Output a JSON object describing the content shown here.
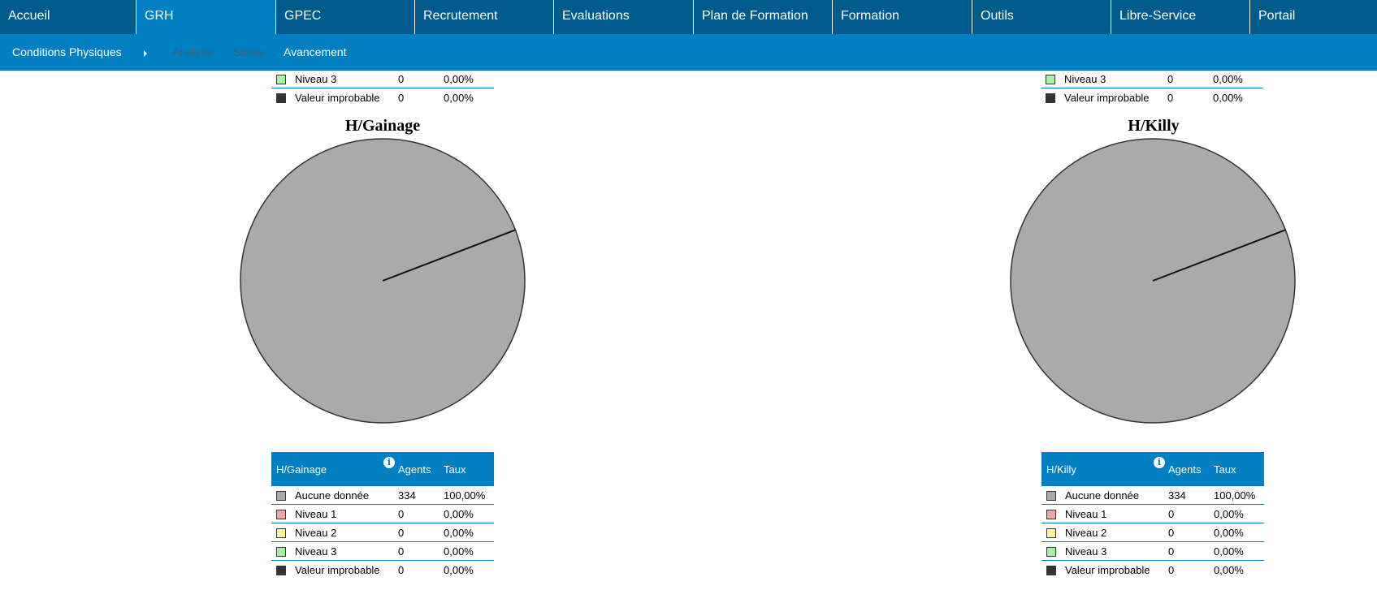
{
  "topnav": {
    "items": [
      {
        "label": "Accueil",
        "active": false
      },
      {
        "label": "GRH",
        "active": true
      },
      {
        "label": "GPEC",
        "active": false
      },
      {
        "label": "Recrutement",
        "active": false
      },
      {
        "label": "Evaluations",
        "active": false
      },
      {
        "label": "Plan de Formation",
        "active": false
      },
      {
        "label": "Formation",
        "active": false
      },
      {
        "label": "Outils",
        "active": false
      },
      {
        "label": "Libre-Service",
        "active": false
      },
      {
        "label": "Portail",
        "active": false
      }
    ]
  },
  "subnav": {
    "items": [
      {
        "label": "Conditions Physiques",
        "enabled": true
      },
      {
        "label": "Analyse",
        "enabled": false
      },
      {
        "label": "Saisie",
        "enabled": false
      },
      {
        "label": "Avancement",
        "enabled": true
      }
    ]
  },
  "colors": {
    "nav_dark": "#005a8c",
    "nav_active": "#0080c3",
    "aucune": "#aaaaaa",
    "niveau1": "#f4a6a6",
    "niveau2": "#fff6a0",
    "niveau3": "#a6f4a6",
    "improbable": "#333333"
  },
  "left": {
    "top_rows": [
      {
        "label": "Niveau 3",
        "agents": "0",
        "taux": "0,00%",
        "color": "#a6f4a6"
      },
      {
        "label": "Valeur improbable",
        "agents": "0",
        "taux": "0,00%",
        "color": "#333333"
      }
    ],
    "chart_title": "H/Gainage",
    "table": {
      "title": "H/Gainage",
      "col_agents": "Agents",
      "col_taux": "Taux",
      "rows": [
        {
          "label": "Aucune donnée",
          "agents": "334",
          "taux": "100,00%",
          "color": "#aaaaaa"
        },
        {
          "label": "Niveau 1",
          "agents": "0",
          "taux": "0,00%",
          "color": "#f4a6a6"
        },
        {
          "label": "Niveau 2",
          "agents": "0",
          "taux": "0,00%",
          "color": "#fff6a0"
        },
        {
          "label": "Niveau 3",
          "agents": "0",
          "taux": "0,00%",
          "color": "#a6f4a6"
        },
        {
          "label": "Valeur improbable",
          "agents": "0",
          "taux": "0,00%",
          "color": "#333333"
        }
      ]
    }
  },
  "right": {
    "top_rows": [
      {
        "label": "Niveau 3",
        "agents": "0",
        "taux": "0,00%",
        "color": "#a6f4a6"
      },
      {
        "label": "Valeur improbable",
        "agents": "0",
        "taux": "0,00%",
        "color": "#333333"
      }
    ],
    "chart_title": "H/Killy",
    "table": {
      "title": "H/Killy",
      "col_agents": "Agents",
      "col_taux": "Taux",
      "rows": [
        {
          "label": "Aucune donnée",
          "agents": "334",
          "taux": "100,00%",
          "color": "#aaaaaa"
        },
        {
          "label": "Niveau 1",
          "agents": "0",
          "taux": "0,00%",
          "color": "#f4a6a6"
        },
        {
          "label": "Niveau 2",
          "agents": "0",
          "taux": "0,00%",
          "color": "#fff6a0"
        },
        {
          "label": "Niveau 3",
          "agents": "0",
          "taux": "0,00%",
          "color": "#a6f4a6"
        },
        {
          "label": "Valeur improbable",
          "agents": "0",
          "taux": "0,00%",
          "color": "#333333"
        }
      ]
    }
  },
  "chart_data": [
    {
      "type": "pie",
      "title": "H/Gainage",
      "categories": [
        "Aucune donnée",
        "Niveau 1",
        "Niveau 2",
        "Niveau 3",
        "Valeur improbable"
      ],
      "values": [
        334,
        0,
        0,
        0,
        0
      ],
      "percentages": [
        100.0,
        0.0,
        0.0,
        0.0,
        0.0
      ]
    },
    {
      "type": "pie",
      "title": "H/Killy",
      "categories": [
        "Aucune donnée",
        "Niveau 1",
        "Niveau 2",
        "Niveau 3",
        "Valeur improbable"
      ],
      "values": [
        334,
        0,
        0,
        0,
        0
      ],
      "percentages": [
        100.0,
        0.0,
        0.0,
        0.0,
        0.0
      ]
    }
  ]
}
